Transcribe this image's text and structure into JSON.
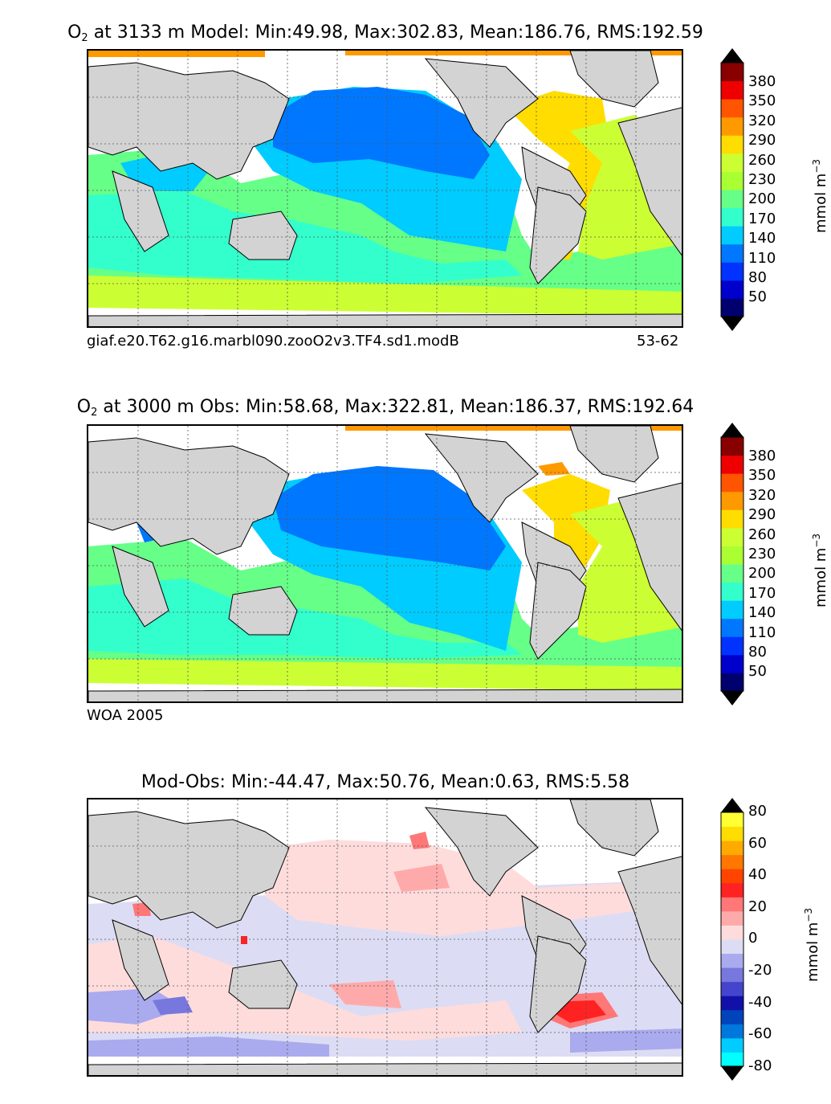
{
  "panels": [
    {
      "id": "model",
      "title_prefix": "O",
      "title_sub": "2",
      "title_rest": "  at 3133 m Model: Min:49.98, Max:302.83, Mean:186.76, RMS:192.59",
      "caption_left": "giaf.e20.T62.g16.marbl090.zooO2v3.TF4.sd1.modB",
      "caption_right": "53-62"
    },
    {
      "id": "obs",
      "title_prefix": "O",
      "title_sub": "2",
      "title_rest": "  at 3000 m Obs: Min:58.68, Max:322.81, Mean:186.37, RMS:192.64",
      "caption_left": "WOA 2005",
      "caption_right": ""
    },
    {
      "id": "diff",
      "title_prefix": "",
      "title_sub": "",
      "title_rest": "Mod-Obs: Min:-44.47, Max:50.76, Mean:0.63, RMS:5.58",
      "caption_left": "",
      "caption_right": ""
    }
  ],
  "colorbars": {
    "o2": {
      "unit_main": "mmol m",
      "unit_sup": "−3",
      "ticks": [
        "380",
        "350",
        "320",
        "290",
        "260",
        "230",
        "200",
        "170",
        "140",
        "110",
        "80",
        "50"
      ],
      "colors": [
        "#00006e",
        "#0000cc",
        "#0033ff",
        "#0077ff",
        "#00ccff",
        "#33ffcc",
        "#66ff88",
        "#aaff33",
        "#ccff33",
        "#ffdd00",
        "#ff9900",
        "#ff5500",
        "#ee0000",
        "#880000"
      ],
      "extend_low_color": "#00004a",
      "extend_high_color": "#550000"
    },
    "diff": {
      "unit_main": "mmol m",
      "unit_sup": "−3",
      "ticks": [
        "80",
        "60",
        "40",
        "20",
        "0",
        "-20",
        "-40",
        "-60",
        "-80"
      ],
      "colors": [
        "#00ffff",
        "#00ccff",
        "#0077dd",
        "#0044bb",
        "#1111aa",
        "#4444cc",
        "#7777dd",
        "#aaaaee",
        "#dcdcf4",
        "#ffdcdc",
        "#ffaaaa",
        "#ff7777",
        "#ff2222",
        "#ff4400",
        "#ff7700",
        "#ffaa00",
        "#ffdd00",
        "#ffff33"
      ],
      "extend_low_color": "#00ffff",
      "extend_high_color": "#ffff00"
    }
  }
}
